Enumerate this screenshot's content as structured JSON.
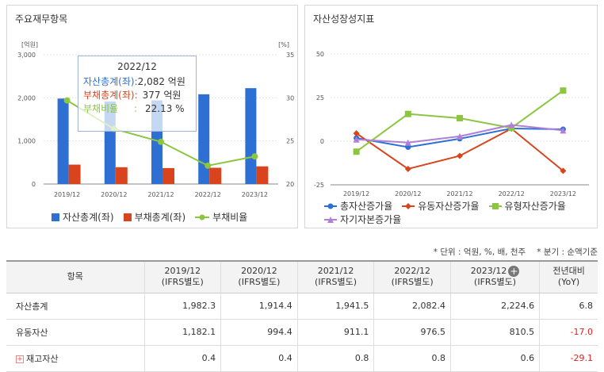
{
  "left_panel": {
    "title": "주요재무항목",
    "y_left_unit": "[억원]",
    "y_right_unit": "[%]",
    "legend": [
      "자산총계(좌)",
      "부채총계(좌)",
      "부채비율"
    ],
    "colors": {
      "bar1": "#2e6fd4",
      "bar2": "#d9441c",
      "line": "#8cc63f"
    }
  },
  "tooltip": {
    "title": "2022/12",
    "rows": [
      {
        "label": "자산총계(좌)",
        "sep": ":",
        "value": "2,082 억원"
      },
      {
        "label": "부채총계(좌)",
        "sep": ":",
        "value": "377 억원"
      },
      {
        "label": "부채비율",
        "sep": ":",
        "value": "22.13 %"
      }
    ]
  },
  "right_panel": {
    "title": "자산성장성지표",
    "legend": [
      "총자산증가율",
      "유동자산증가율",
      "유형자산증가율",
      "자기자본증가율"
    ],
    "colors": {
      "s1": "#2e6fd4",
      "s2": "#d9441c",
      "s3": "#8cc63f",
      "s4": "#b07fd8"
    }
  },
  "chart_data": [
    {
      "type": "bar",
      "categories": [
        "2019/12",
        "2020/12",
        "2021/12",
        "2022/12",
        "2023/12"
      ],
      "series": [
        {
          "name": "자산총계(좌)",
          "values": [
            1982.3,
            1914.4,
            1941.5,
            2082.4,
            2224.6
          ],
          "axis": "left"
        },
        {
          "name": "부채총계(좌)",
          "values": [
            450,
            390,
            370,
            377,
            410
          ],
          "axis": "left"
        },
        {
          "name": "부채비율",
          "type": "line",
          "values": [
            29.7,
            26.4,
            24.9,
            22.13,
            23.2
          ],
          "axis": "right"
        }
      ],
      "ylim": [
        0,
        3000
      ],
      "yticks": [
        "0",
        "1,000",
        "2,000",
        "3,000"
      ],
      "y2lim": [
        20,
        35
      ],
      "y2ticks": [
        "20",
        "25",
        "30",
        "35"
      ]
    },
    {
      "type": "line",
      "categories": [
        "2019/12",
        "2020/12",
        "2021/12",
        "2022/12",
        "2023/12"
      ],
      "series": [
        {
          "name": "총자산증가율",
          "values": [
            1.8,
            -3.4,
            1.4,
            7.3,
            6.8
          ]
        },
        {
          "name": "유동자산증가율",
          "values": [
            4.5,
            -15.9,
            -8.4,
            7.2,
            -17.0
          ]
        },
        {
          "name": "유형자산증가율",
          "values": [
            -6.0,
            15.6,
            13.2,
            7.6,
            29.0
          ]
        },
        {
          "name": "자기자본증가율",
          "values": [
            1.0,
            -0.8,
            2.8,
            9.3,
            6.2
          ]
        }
      ],
      "ylim": [
        -25,
        50
      ],
      "yticks": [
        "-25",
        "0",
        "25",
        "50"
      ]
    }
  ],
  "table": {
    "unit_note": "* 단위 : 억원, %, 배, 천주",
    "period_note": "* 분기 : 순액기준",
    "headers": [
      {
        "line1": "항목",
        "line2": ""
      },
      {
        "line1": "2019/12",
        "line2": "(IFRS별도)"
      },
      {
        "line1": "2020/12",
        "line2": "(IFRS별도)"
      },
      {
        "line1": "2021/12",
        "line2": "(IFRS별도)"
      },
      {
        "line1": "2022/12",
        "line2": "(IFRS별도)"
      },
      {
        "line1": "2023/12",
        "line2": "(IFRS별도)"
      },
      {
        "line1": "전년대비",
        "line2": "(YoY)"
      }
    ],
    "rows": [
      {
        "label": "자산총계",
        "values": [
          "1,982.3",
          "1,914.4",
          "1,941.5",
          "2,082.4",
          "2,224.6",
          "6.8"
        ],
        "yoy_negative": false,
        "expandable": false
      },
      {
        "label": "유동자산",
        "values": [
          "1,182.1",
          "994.4",
          "911.1",
          "976.5",
          "810.5",
          "-17.0"
        ],
        "yoy_negative": true,
        "expandable": false
      },
      {
        "label": "재고자산",
        "values": [
          "0.4",
          "0.4",
          "0.8",
          "0.8",
          "0.6",
          "-29.1"
        ],
        "yoy_negative": true,
        "expandable": true
      }
    ]
  }
}
